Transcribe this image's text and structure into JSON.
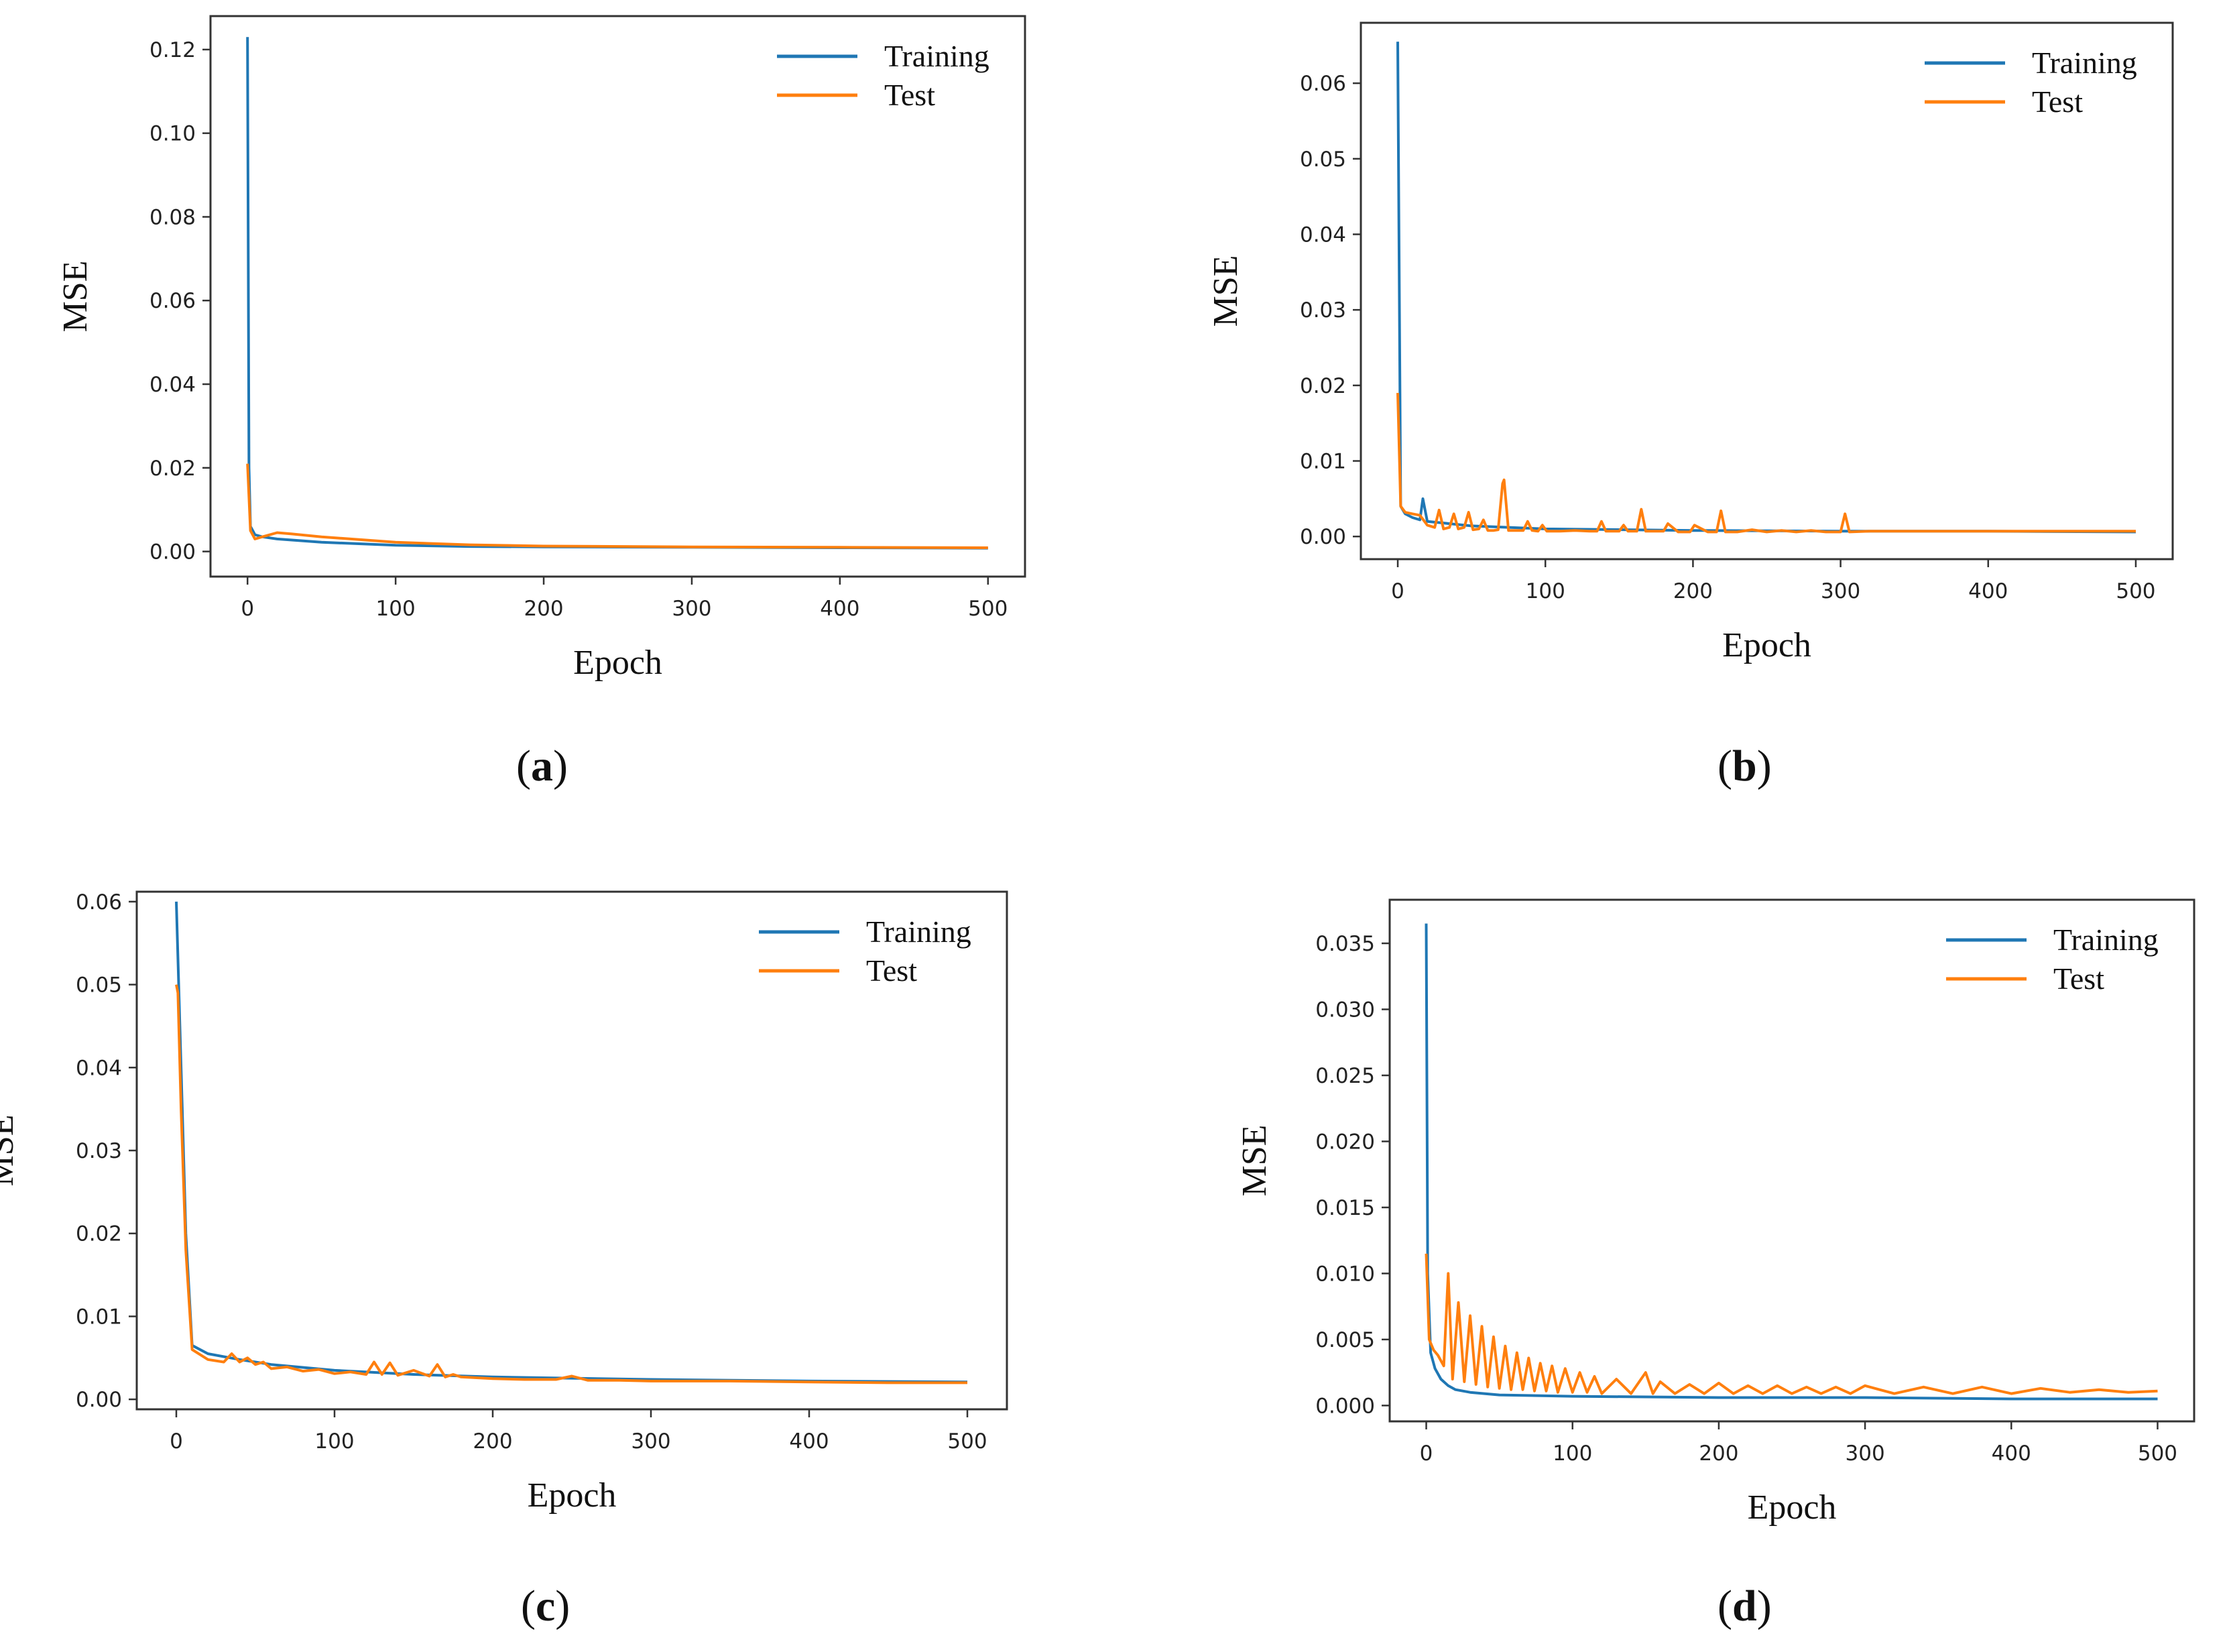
{
  "chart_data": [
    {
      "type": "line",
      "panel_label": "a",
      "xlabel": "Epoch",
      "ylabel": "MSE",
      "xlim": [
        -25,
        525
      ],
      "ylim": [
        -0.006,
        0.128
      ],
      "xticks": [
        0,
        100,
        200,
        300,
        400,
        500
      ],
      "xtick_labels": [
        "0",
        "100",
        "200",
        "300",
        "400",
        "500"
      ],
      "yticks": [
        0,
        0.02,
        0.04,
        0.06,
        0.08,
        0.1,
        0.12
      ],
      "ytick_labels": [
        "0.00",
        "0.02",
        "0.04",
        "0.06",
        "0.08",
        "0.10",
        "0.12"
      ],
      "legend": "top-right",
      "series": [
        {
          "name": "Training",
          "color": "#1f77b4",
          "x": [
            0,
            1,
            2,
            5,
            10,
            20,
            50,
            100,
            150,
            200,
            300,
            400,
            500
          ],
          "y": [
            0.123,
            0.02,
            0.006,
            0.004,
            0.0035,
            0.003,
            0.0022,
            0.0015,
            0.0012,
            0.0011,
            0.001,
            0.0009,
            0.0008
          ]
        },
        {
          "name": "Test",
          "color": "#ff7f0e",
          "x": [
            0,
            2,
            5,
            10,
            20,
            30,
            50,
            100,
            150,
            200,
            300,
            400,
            500
          ],
          "y": [
            0.021,
            0.005,
            0.003,
            0.0035,
            0.0045,
            0.0042,
            0.0035,
            0.0022,
            0.0016,
            0.0013,
            0.0011,
            0.001,
            0.0009
          ]
        }
      ]
    },
    {
      "type": "line",
      "panel_label": "b",
      "xlabel": "Epoch",
      "ylabel": "MSE",
      "xlim": [
        -25,
        525
      ],
      "ylim": [
        -0.003,
        0.068
      ],
      "xticks": [
        0,
        100,
        200,
        300,
        400,
        500
      ],
      "xtick_labels": [
        "0",
        "100",
        "200",
        "300",
        "400",
        "500"
      ],
      "yticks": [
        0,
        0.01,
        0.02,
        0.03,
        0.04,
        0.05,
        0.06
      ],
      "ytick_labels": [
        "0.00",
        "0.01",
        "0.02",
        "0.03",
        "0.04",
        "0.05",
        "0.06"
      ],
      "legend": "top-right",
      "series": [
        {
          "name": "Training",
          "color": "#1f77b4",
          "x": [
            0,
            2,
            5,
            10,
            15,
            17,
            20,
            30,
            50,
            100,
            200,
            300,
            400,
            500
          ],
          "y": [
            0.0655,
            0.004,
            0.003,
            0.0025,
            0.0022,
            0.005,
            0.002,
            0.0018,
            0.0014,
            0.001,
            0.0008,
            0.0007,
            0.0007,
            0.0006
          ]
        },
        {
          "name": "Test",
          "color": "#ff7f0e",
          "x": [
            0,
            2,
            5,
            10,
            15,
            20,
            25,
            28,
            31,
            35,
            38,
            41,
            45,
            48,
            51,
            55,
            58,
            61,
            65,
            68,
            71,
            72,
            75,
            85,
            88,
            91,
            95,
            98,
            101,
            110,
            120,
            130,
            135,
            138,
            141,
            145,
            150,
            153,
            156,
            162,
            165,
            168,
            175,
            180,
            183,
            190,
            198,
            201,
            210,
            216,
            219,
            222,
            230,
            240,
            250,
            260,
            270,
            280,
            290,
            300,
            303,
            306,
            320,
            350,
            400,
            450,
            500
          ],
          "y": [
            0.019,
            0.004,
            0.0032,
            0.003,
            0.0028,
            0.0015,
            0.0012,
            0.0035,
            0.001,
            0.0012,
            0.003,
            0.001,
            0.0012,
            0.0032,
            0.0009,
            0.001,
            0.0022,
            0.0008,
            0.0008,
            0.0009,
            0.007,
            0.0075,
            0.0008,
            0.0008,
            0.002,
            0.0008,
            0.0007,
            0.0015,
            0.0007,
            0.0007,
            0.0008,
            0.0007,
            0.0007,
            0.002,
            0.0007,
            0.0007,
            0.0007,
            0.0015,
            0.0007,
            0.0007,
            0.0036,
            0.0007,
            0.0007,
            0.0007,
            0.0017,
            0.0006,
            0.0006,
            0.0015,
            0.0006,
            0.0006,
            0.0034,
            0.0006,
            0.0006,
            0.0009,
            0.0006,
            0.0008,
            0.0006,
            0.0008,
            0.0006,
            0.0006,
            0.003,
            0.0006,
            0.0007,
            0.0007,
            0.0007,
            0.0007,
            0.0007
          ]
        }
      ]
    },
    {
      "type": "line",
      "panel_label": "c",
      "xlabel": "Epoch",
      "ylabel": "MSE",
      "xlim": [
        -25,
        525
      ],
      "ylim": [
        -0.0012,
        0.0612
      ],
      "xticks": [
        0,
        100,
        200,
        300,
        400,
        500
      ],
      "xtick_labels": [
        "0",
        "100",
        "200",
        "300",
        "400",
        "500"
      ],
      "yticks": [
        0,
        0.01,
        0.02,
        0.03,
        0.04,
        0.05,
        0.06
      ],
      "ytick_labels": [
        "0.00",
        "0.01",
        "0.02",
        "0.03",
        "0.04",
        "0.05",
        "0.06"
      ],
      "legend": "top-right",
      "series": [
        {
          "name": "Training",
          "color": "#1f77b4",
          "x": [
            0,
            3,
            6,
            10,
            20,
            40,
            60,
            100,
            150,
            200,
            300,
            400,
            500
          ],
          "y": [
            0.06,
            0.04,
            0.02,
            0.0065,
            0.0055,
            0.0048,
            0.0042,
            0.0035,
            0.003,
            0.0027,
            0.0024,
            0.0022,
            0.0021
          ]
        },
        {
          "name": "Test",
          "color": "#ff7f0e",
          "x": [
            0,
            1,
            3,
            6,
            10,
            20,
            30,
            35,
            40,
            45,
            50,
            55,
            60,
            70,
            80,
            90,
            100,
            110,
            120,
            125,
            130,
            135,
            140,
            150,
            160,
            165,
            170,
            175,
            180,
            200,
            220,
            240,
            250,
            260,
            280,
            300,
            350,
            400,
            450,
            500
          ],
          "y": [
            0.05,
            0.049,
            0.035,
            0.018,
            0.006,
            0.0048,
            0.0045,
            0.0055,
            0.0045,
            0.005,
            0.0042,
            0.0045,
            0.0037,
            0.0039,
            0.0034,
            0.0036,
            0.0031,
            0.0033,
            0.003,
            0.0045,
            0.003,
            0.0044,
            0.0029,
            0.0035,
            0.0028,
            0.0042,
            0.0027,
            0.003,
            0.0027,
            0.0025,
            0.0024,
            0.0024,
            0.0028,
            0.0023,
            0.0023,
            0.0022,
            0.0022,
            0.0021,
            0.002,
            0.002
          ]
        }
      ]
    },
    {
      "type": "line",
      "panel_label": "d",
      "xlabel": "Epoch",
      "ylabel": "MSE",
      "xlim": [
        -25,
        525
      ],
      "ylim": [
        -0.0012,
        0.0383
      ],
      "xticks": [
        0,
        100,
        200,
        300,
        400,
        500
      ],
      "xtick_labels": [
        "0",
        "100",
        "200",
        "300",
        "400",
        "500"
      ],
      "yticks": [
        0,
        0.005,
        0.01,
        0.015,
        0.02,
        0.025,
        0.03,
        0.035
      ],
      "ytick_labels": [
        "0.000",
        "0.005",
        "0.010",
        "0.015",
        "0.020",
        "0.025",
        "0.030",
        "0.035"
      ],
      "legend": "top-right",
      "series": [
        {
          "name": "Training",
          "color": "#1f77b4",
          "x": [
            0,
            1,
            3,
            6,
            10,
            15,
            20,
            30,
            50,
            100,
            200,
            300,
            400,
            500
          ],
          "y": [
            0.0365,
            0.01,
            0.004,
            0.0028,
            0.002,
            0.0015,
            0.0012,
            0.001,
            0.0008,
            0.0007,
            0.0006,
            0.0006,
            0.0005,
            0.0005
          ]
        },
        {
          "name": "Test",
          "color": "#ff7f0e",
          "x": [
            0,
            2,
            5,
            8,
            12,
            15,
            18,
            22,
            26,
            30,
            34,
            38,
            42,
            46,
            50,
            54,
            58,
            62,
            66,
            70,
            74,
            78,
            82,
            86,
            90,
            95,
            100,
            105,
            110,
            115,
            120,
            130,
            140,
            150,
            155,
            160,
            170,
            180,
            190,
            200,
            210,
            220,
            230,
            240,
            250,
            260,
            270,
            280,
            290,
            300,
            320,
            340,
            360,
            380,
            400,
            420,
            440,
            460,
            480,
            500
          ],
          "y": [
            0.0115,
            0.005,
            0.0042,
            0.0038,
            0.003,
            0.01,
            0.002,
            0.0078,
            0.0018,
            0.0068,
            0.0016,
            0.006,
            0.0014,
            0.0052,
            0.0013,
            0.0045,
            0.0012,
            0.004,
            0.0012,
            0.0036,
            0.0011,
            0.0032,
            0.0011,
            0.003,
            0.001,
            0.0028,
            0.001,
            0.0025,
            0.001,
            0.0022,
            0.0009,
            0.002,
            0.0009,
            0.0025,
            0.0009,
            0.0018,
            0.0009,
            0.0016,
            0.0009,
            0.0017,
            0.0009,
            0.0015,
            0.0009,
            0.0015,
            0.0009,
            0.0014,
            0.0009,
            0.0014,
            0.0009,
            0.0015,
            0.0009,
            0.0014,
            0.0009,
            0.0014,
            0.0009,
            0.0013,
            0.001,
            0.0012,
            0.001,
            0.0011
          ]
        }
      ]
    }
  ]
}
